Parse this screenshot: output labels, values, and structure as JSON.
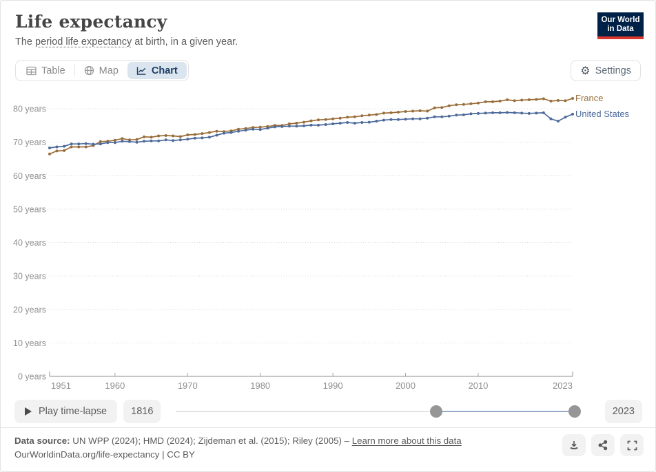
{
  "header": {
    "title": "Life expectancy",
    "subtitle_prefix": "The ",
    "subtitle_link": "period life expectancy",
    "subtitle_suffix": " at birth, in a given year.",
    "logo_line1": "Our World",
    "logo_line2": "in Data"
  },
  "tabs": {
    "table_label": "Table",
    "map_label": "Map",
    "chart_label": "Chart",
    "settings_label": "Settings"
  },
  "icons": {
    "gear": "⚙"
  },
  "colors": {
    "france": "#996D39",
    "united_states": "#4C6A9C",
    "active_tab_bg": "#dbe5f0",
    "accent_navy": "#1d3d63",
    "logo_navy": "#002147",
    "logo_red": "#dc352c",
    "grid": "#d9d9d9",
    "axis": "#a3a3a3",
    "tick_label": "#8f8f8f"
  },
  "timeline": {
    "play_label": "Play time-lapse",
    "left_year_label": "1816",
    "right_year_label": "2023",
    "slider": {
      "min": 1816,
      "max": 2023,
      "start": 1951,
      "end": 2023
    }
  },
  "footer": {
    "source_label": "Data source:",
    "source_text": " UN WPP (2024); HMD (2024); Zijdeman et al. (2015); Riley (2005) – ",
    "source_link": "Learn more about this data",
    "citation": "OurWorldinData.org/life-expectancy | CC BY"
  },
  "chart_data": {
    "type": "line",
    "title": "Life expectancy",
    "ylabel_suffix": " years",
    "ylim": [
      0,
      85
    ],
    "yticks": [
      0,
      10,
      20,
      30,
      40,
      50,
      60,
      70,
      80
    ],
    "xticks": [
      1951,
      1960,
      1970,
      1980,
      1990,
      2000,
      2010,
      2023
    ],
    "grid": "dotted-horizontal",
    "legend_position": "line-end",
    "x": [
      1951,
      1952,
      1953,
      1954,
      1955,
      1956,
      1957,
      1958,
      1959,
      1960,
      1961,
      1962,
      1963,
      1964,
      1965,
      1966,
      1967,
      1968,
      1969,
      1970,
      1971,
      1972,
      1973,
      1974,
      1975,
      1976,
      1977,
      1978,
      1979,
      1980,
      1981,
      1982,
      1983,
      1984,
      1985,
      1986,
      1987,
      1988,
      1989,
      1990,
      1991,
      1992,
      1993,
      1994,
      1995,
      1996,
      1997,
      1998,
      1999,
      2000,
      2001,
      2002,
      2003,
      2004,
      2005,
      2006,
      2007,
      2008,
      2009,
      2010,
      2011,
      2012,
      2013,
      2014,
      2015,
      2016,
      2017,
      2018,
      2019,
      2020,
      2021,
      2022,
      2023
    ],
    "series": [
      {
        "name": "France",
        "color": "#996D39",
        "values": [
          66.5,
          67.4,
          67.5,
          68.6,
          68.6,
          68.6,
          69.0,
          70.2,
          70.3,
          70.6,
          71.1,
          70.7,
          70.8,
          71.6,
          71.5,
          71.9,
          72.0,
          71.9,
          71.7,
          72.2,
          72.3,
          72.6,
          72.9,
          73.3,
          73.2,
          73.4,
          73.9,
          74.1,
          74.4,
          74.5,
          74.7,
          75.0,
          75.0,
          75.5,
          75.7,
          76.0,
          76.4,
          76.7,
          76.8,
          77.0,
          77.2,
          77.5,
          77.6,
          77.9,
          78.1,
          78.3,
          78.7,
          78.8,
          79.0,
          79.2,
          79.3,
          79.4,
          79.3,
          80.3,
          80.4,
          80.9,
          81.2,
          81.3,
          81.5,
          81.7,
          82.1,
          82.1,
          82.3,
          82.7,
          82.4,
          82.6,
          82.7,
          82.8,
          83.0,
          82.3,
          82.5,
          82.4,
          83.1
        ]
      },
      {
        "name": "United States",
        "color": "#4C6A9C",
        "values": [
          68.3,
          68.6,
          68.8,
          69.5,
          69.5,
          69.6,
          69.4,
          69.5,
          69.9,
          69.9,
          70.3,
          70.2,
          70.0,
          70.3,
          70.4,
          70.4,
          70.7,
          70.5,
          70.7,
          70.9,
          71.2,
          71.3,
          71.5,
          72.1,
          72.7,
          72.9,
          73.3,
          73.6,
          73.9,
          73.8,
          74.2,
          74.6,
          74.7,
          74.8,
          74.8,
          74.9,
          75.1,
          75.1,
          75.3,
          75.5,
          75.7,
          75.9,
          75.7,
          75.9,
          76.0,
          76.3,
          76.6,
          76.8,
          76.8,
          76.9,
          77.0,
          77.0,
          77.2,
          77.6,
          77.6,
          77.8,
          78.1,
          78.2,
          78.5,
          78.6,
          78.7,
          78.8,
          78.8,
          78.9,
          78.8,
          78.7,
          78.6,
          78.7,
          78.8,
          77.0,
          76.3,
          77.5,
          78.4
        ]
      }
    ]
  }
}
